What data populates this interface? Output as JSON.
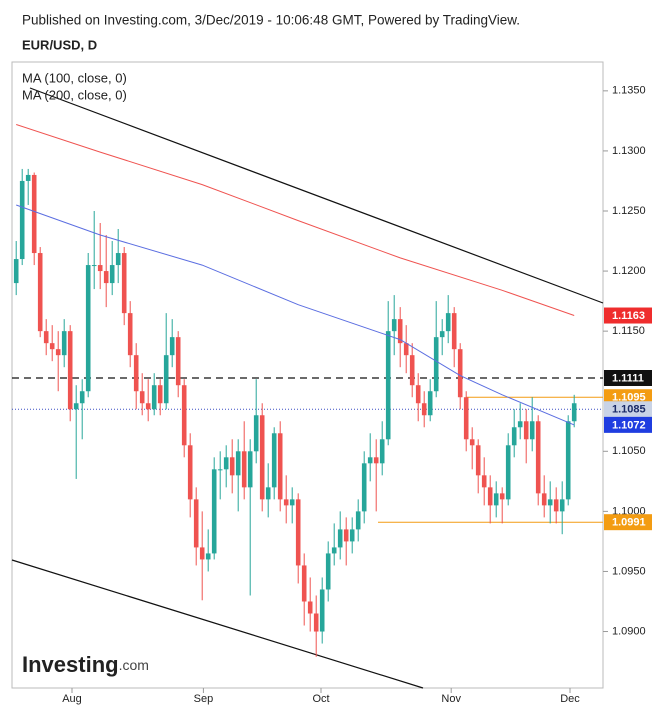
{
  "header": "Published on Investing.com, 3/Dec/2019 - 10:06:48 GMT, Powered by TradingView.",
  "logo": {
    "name": "Investing",
    "suffix": ".com"
  },
  "chart_data": {
    "type": "candlestick",
    "title": "EUR/USD, D",
    "up_color": "#26a69a",
    "down_color": "#ef5350",
    "xlim": [
      -0.7,
      97.8
    ],
    "ylim": [
      1.0853,
      1.1374
    ],
    "xticks": [
      {
        "value": 9.3,
        "label": "Aug"
      },
      {
        "value": 31.2,
        "label": "Sep"
      },
      {
        "value": 50.8,
        "label": "Oct"
      },
      {
        "value": 72.5,
        "label": "Nov"
      },
      {
        "value": 92.3,
        "label": "Dec"
      }
    ],
    "yticks": [
      {
        "value": 1.09,
        "label": "1.0900"
      },
      {
        "value": 1.095,
        "label": "1.0950"
      },
      {
        "value": 1.1,
        "label": "1.1000"
      },
      {
        "value": 1.105,
        "label": "1.1050"
      },
      {
        "value": 1.115,
        "label": "1.1150"
      },
      {
        "value": 1.12,
        "label": "1.1200"
      },
      {
        "value": 1.125,
        "label": "1.1250"
      },
      {
        "value": 1.13,
        "label": "1.1300"
      },
      {
        "value": 1.135,
        "label": "1.1350"
      }
    ],
    "candles": [
      [
        1.119,
        1.1225,
        1.118,
        1.121
      ],
      [
        1.121,
        1.1285,
        1.1205,
        1.1275
      ],
      [
        1.1275,
        1.1285,
        1.1255,
        1.128
      ],
      [
        1.128,
        1.1282,
        1.1205,
        1.1215
      ],
      [
        1.1215,
        1.122,
        1.1145,
        1.115
      ],
      [
        1.115,
        1.116,
        1.113,
        1.114
      ],
      [
        1.114,
        1.1155,
        1.1125,
        1.1135
      ],
      [
        1.1135,
        1.115,
        1.11,
        1.113
      ],
      [
        1.113,
        1.116,
        1.112,
        1.115
      ],
      [
        1.115,
        1.1155,
        1.1075,
        1.1085
      ],
      [
        1.1085,
        1.1105,
        1.1027,
        1.109
      ],
      [
        1.109,
        1.111,
        1.106,
        1.11
      ],
      [
        1.11,
        1.1215,
        1.1095,
        1.1205
      ],
      [
        1.1205,
        1.125,
        1.1185,
        1.1205
      ],
      [
        1.1205,
        1.124,
        1.1185,
        1.12
      ],
      [
        1.12,
        1.123,
        1.117,
        1.119
      ],
      [
        1.119,
        1.1225,
        1.118,
        1.1205
      ],
      [
        1.1205,
        1.1235,
        1.119,
        1.1215
      ],
      [
        1.1215,
        1.122,
        1.1155,
        1.1165
      ],
      [
        1.1165,
        1.1175,
        1.112,
        1.113
      ],
      [
        1.113,
        1.114,
        1.1085,
        1.11
      ],
      [
        1.11,
        1.1115,
        1.108,
        1.109
      ],
      [
        1.109,
        1.111,
        1.1075,
        1.1085
      ],
      [
        1.1085,
        1.1115,
        1.108,
        1.1105
      ],
      [
        1.1105,
        1.111,
        1.108,
        1.109
      ],
      [
        1.109,
        1.1165,
        1.1085,
        1.113
      ],
      [
        1.113,
        1.116,
        1.112,
        1.1145
      ],
      [
        1.1145,
        1.115,
        1.1095,
        1.1105
      ],
      [
        1.1105,
        1.111,
        1.1045,
        1.1055
      ],
      [
        1.1055,
        1.1065,
        1.0995,
        1.101
      ],
      [
        1.101,
        1.102,
        1.0955,
        1.097
      ],
      [
        1.097,
        1.1,
        1.0926,
        1.096
      ],
      [
        1.096,
        1.0985,
        1.095,
        1.0965
      ],
      [
        1.0965,
        1.1045,
        1.096,
        1.1035
      ],
      [
        1.1035,
        1.105,
        1.101,
        1.1035
      ],
      [
        1.1035,
        1.1055,
        1.102,
        1.1045
      ],
      [
        1.1045,
        1.106,
        1.1015,
        1.103
      ],
      [
        1.103,
        1.106,
        1.1,
        1.105
      ],
      [
        1.105,
        1.1075,
        1.101,
        1.102
      ],
      [
        1.102,
        1.106,
        1.093,
        1.105
      ],
      [
        1.105,
        1.111,
        1.104,
        1.108
      ],
      [
        1.108,
        1.109,
        1.1,
        1.101
      ],
      [
        1.101,
        1.104,
        1.0995,
        1.102
      ],
      [
        1.102,
        1.107,
        1.101,
        1.1065
      ],
      [
        1.1065,
        1.1075,
        1.1,
        1.101
      ],
      [
        1.101,
        1.103,
        1.099,
        1.1005
      ],
      [
        1.1005,
        1.102,
        1.099,
        1.101
      ],
      [
        1.101,
        1.1015,
        1.094,
        1.0955
      ],
      [
        1.0955,
        1.0965,
        1.0905,
        1.0925
      ],
      [
        1.0925,
        1.0945,
        1.09,
        1.0915
      ],
      [
        1.0915,
        1.093,
        1.0879,
        1.09
      ],
      [
        1.09,
        1.0945,
        1.089,
        1.0935
      ],
      [
        1.0935,
        1.0975,
        1.0925,
        1.0965
      ],
      [
        1.0965,
        1.099,
        1.0955,
        1.097
      ],
      [
        1.097,
        1.1,
        1.096,
        1.0985
      ],
      [
        1.0985,
        1.0995,
        1.0955,
        1.0975
      ],
      [
        1.0975,
        1.0995,
        1.0965,
        1.0985
      ],
      [
        1.0985,
        1.101,
        1.0975,
        1.1
      ],
      [
        1.1,
        1.105,
        1.099,
        1.104
      ],
      [
        1.104,
        1.1065,
        1.1025,
        1.1045
      ],
      [
        1.1045,
        1.106,
        1.1,
        1.104
      ],
      [
        1.104,
        1.1075,
        1.103,
        1.106
      ],
      [
        1.106,
        1.1175,
        1.1055,
        1.115
      ],
      [
        1.115,
        1.118,
        1.113,
        1.116
      ],
      [
        1.116,
        1.117,
        1.112,
        1.114
      ],
      [
        1.114,
        1.1155,
        1.1115,
        1.113
      ],
      [
        1.113,
        1.114,
        1.1095,
        1.1105
      ],
      [
        1.1105,
        1.1115,
        1.1075,
        1.109
      ],
      [
        1.109,
        1.11,
        1.107,
        1.108
      ],
      [
        1.108,
        1.111,
        1.1075,
        1.11
      ],
      [
        1.11,
        1.1175,
        1.1095,
        1.1145
      ],
      [
        1.1145,
        1.116,
        1.113,
        1.115
      ],
      [
        1.115,
        1.118,
        1.114,
        1.1165
      ],
      [
        1.1165,
        1.117,
        1.112,
        1.1135
      ],
      [
        1.1135,
        1.114,
        1.1085,
        1.1095
      ],
      [
        1.1095,
        1.11,
        1.105,
        1.106
      ],
      [
        1.106,
        1.107,
        1.1035,
        1.1055
      ],
      [
        1.1055,
        1.106,
        1.1015,
        1.103
      ],
      [
        1.103,
        1.1045,
        1.1005,
        1.102
      ],
      [
        1.102,
        1.103,
        1.099,
        1.1005
      ],
      [
        1.1005,
        1.1025,
        1.0995,
        1.1015
      ],
      [
        1.1015,
        1.102,
        1.099,
        1.101
      ],
      [
        1.101,
        1.1065,
        1.1005,
        1.1055
      ],
      [
        1.1055,
        1.1085,
        1.1045,
        1.107
      ],
      [
        1.107,
        1.109,
        1.106,
        1.1075
      ],
      [
        1.1075,
        1.1085,
        1.104,
        1.106
      ],
      [
        1.106,
        1.1095,
        1.105,
        1.1075
      ],
      [
        1.1075,
        1.108,
        1.1005,
        1.1015
      ],
      [
        1.1015,
        1.103,
        1.0995,
        1.1005
      ],
      [
        1.1005,
        1.1025,
        1.099,
        1.101
      ],
      [
        1.101,
        1.102,
        1.099,
        1.1
      ],
      [
        1.1,
        1.1025,
        1.0981,
        1.101
      ],
      [
        1.101,
        1.108,
        1.1005,
        1.1075
      ],
      [
        1.1075,
        1.1097,
        1.107,
        1.109
      ]
    ],
    "series": [
      {
        "name": "MA (100, close, 0)",
        "color": "#5b6ee1",
        "x": [
          0,
          14,
          31,
          47,
          64,
          74,
          81,
          93
        ],
        "values": [
          1.1255,
          1.123,
          1.1205,
          1.1172,
          1.1143,
          1.1113,
          1.1097,
          1.1072
        ]
      },
      {
        "name": "MA (200, close, 0)",
        "color": "#ef5350",
        "x": [
          0,
          14,
          31,
          47,
          64,
          81,
          93
        ],
        "values": [
          1.1322,
          1.1299,
          1.1272,
          1.1242,
          1.1211,
          1.1184,
          1.1163
        ]
      }
    ],
    "markers": [
      {
        "value": 1.1163,
        "color": "#ef2d2d",
        "text_color": "#ffffff",
        "line": "none"
      },
      {
        "value": 1.1111,
        "color": "#111111",
        "text_color": "#ffffff",
        "line": "dashed"
      },
      {
        "value": 1.1095,
        "color": "#f39c12",
        "text_color": "#ffffff",
        "line": "solid",
        "from": 75
      },
      {
        "value": 1.1085,
        "color": "#c9d3e6",
        "text_color": "#1a2a66",
        "line": "dotted"
      },
      {
        "value": 1.1072,
        "color": "#1f3de0",
        "text_color": "#ffffff",
        "line": "none"
      },
      {
        "value": 1.0991,
        "color": "#f39c12",
        "text_color": "#ffffff",
        "line": "solid",
        "from": 60.3
      }
    ]
  }
}
